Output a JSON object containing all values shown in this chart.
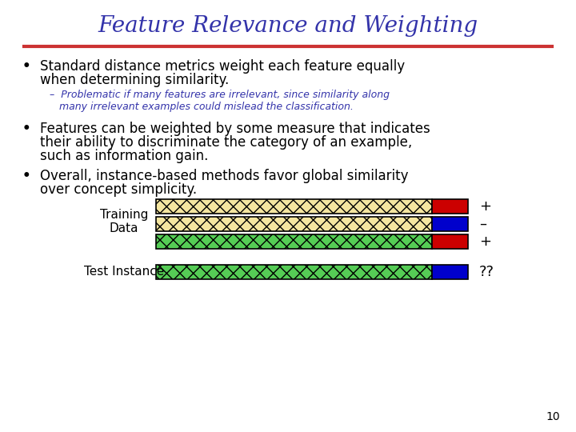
{
  "title": "Feature Relevance and Weighting",
  "title_color": "#3333aa",
  "title_fontsize": 20,
  "title_font": "serif",
  "separator_color": "#cc3333",
  "bg_color": "#ffffff",
  "bullet_color": "#000000",
  "sub_bullet_color": "#3333aa",
  "bullet1_lines": [
    "Standard distance metrics weight each feature equally",
    "when determining similarity."
  ],
  "sub_bullet_lines": [
    "–  Problematic if many features are irrelevant, since similarity along",
    "   many irrelevant examples could mislead the classification."
  ],
  "bullet2_lines": [
    "Features can be weighted by some measure that indicates",
    "their ability to discriminate the category of an example,",
    "such as information gain."
  ],
  "bullet3_lines": [
    "Overall, instance-based methods favor global similarity",
    "over concept simplicity."
  ],
  "bars": [
    {
      "main_color": "#f5e6a0",
      "end_color": "#cc0000",
      "hatch": "xx",
      "label": "+"
    },
    {
      "main_color": "#f5e6a0",
      "end_color": "#0000cc",
      "hatch": "xx",
      "label": "–"
    },
    {
      "main_color": "#55cc55",
      "end_color": "#cc0000",
      "hatch": "xx",
      "label": "+"
    }
  ],
  "test_bar": {
    "main_color": "#55cc55",
    "end_color": "#0000cc",
    "hatch": "xx",
    "label": "??"
  },
  "training_label": [
    "Training",
    "Data"
  ],
  "test_label": "Test Instance",
  "page_number": "10"
}
